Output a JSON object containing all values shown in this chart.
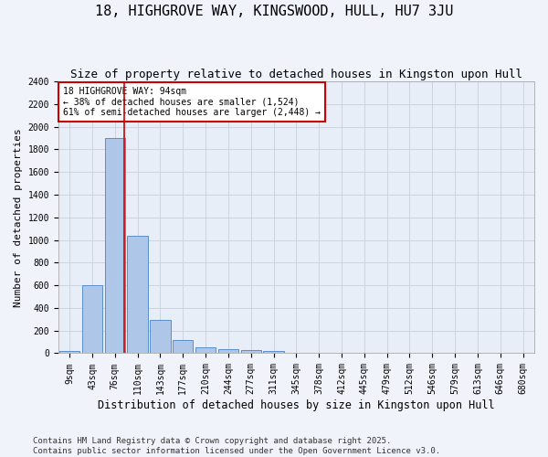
{
  "title": "18, HIGHGROVE WAY, KINGSWOOD, HULL, HU7 3JU",
  "subtitle": "Size of property relative to detached houses in Kingston upon Hull",
  "xlabel": "Distribution of detached houses by size in Kingston upon Hull",
  "ylabel": "Number of detached properties",
  "categories": [
    "9sqm",
    "43sqm",
    "76sqm",
    "110sqm",
    "143sqm",
    "177sqm",
    "210sqm",
    "244sqm",
    "277sqm",
    "311sqm",
    "345sqm",
    "378sqm",
    "412sqm",
    "445sqm",
    "479sqm",
    "512sqm",
    "546sqm",
    "579sqm",
    "613sqm",
    "646sqm",
    "680sqm"
  ],
  "values": [
    20,
    600,
    1900,
    1040,
    295,
    115,
    50,
    40,
    25,
    18,
    0,
    0,
    0,
    0,
    0,
    0,
    0,
    0,
    0,
    0,
    0
  ],
  "bar_color": "#aec6e8",
  "bar_edge_color": "#5b8fc9",
  "vline_pos": 2.425,
  "vline_color": "#cc0000",
  "annotation_text": "18 HIGHGROVE WAY: 94sqm\n← 38% of detached houses are smaller (1,524)\n61% of semi-detached houses are larger (2,448) →",
  "annotation_box_color": "#cc0000",
  "annotation_text_color": "#000000",
  "annotation_bg": "#ffffff",
  "ylim": [
    0,
    2400
  ],
  "yticks": [
    0,
    200,
    400,
    600,
    800,
    1000,
    1200,
    1400,
    1600,
    1800,
    2000,
    2200,
    2400
  ],
  "grid_color": "#c8d0dc",
  "bg_color": "#e8eef8",
  "fig_bg_color": "#f0f4fa",
  "footer": "Contains HM Land Registry data © Crown copyright and database right 2025.\nContains public sector information licensed under the Open Government Licence v3.0.",
  "title_fontsize": 11,
  "subtitle_fontsize": 9,
  "xlabel_fontsize": 8.5,
  "ylabel_fontsize": 8,
  "tick_fontsize": 7,
  "footer_fontsize": 6.5,
  "annot_fontsize": 7
}
